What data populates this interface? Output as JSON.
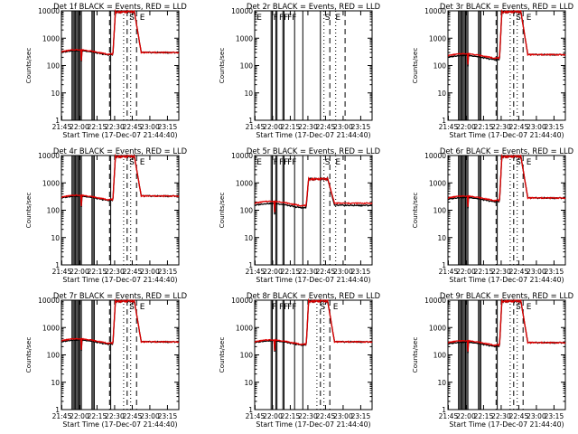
{
  "figure": {
    "colors": {
      "events": "#000000",
      "lld": "#e00000",
      "axis": "#000000"
    }
  },
  "chart_data": [
    {
      "type": "line",
      "title": "Det 1f  BLACK = Events, RED = LLD",
      "xlabel": "Start Time (17-Dec-07 21:44:40)",
      "ylabel": "Counts/sec",
      "yscale": "log",
      "ylim": [
        1,
        10000
      ],
      "xlim_minutes": [
        0,
        100
      ],
      "x_ticks": [
        "21:45",
        "22:00",
        "22:15",
        "22:30",
        "22:45",
        "23:00",
        "23:15"
      ],
      "y_ticks": [
        "1",
        "10",
        "100",
        "1000",
        "10000"
      ],
      "annotations": [
        "S",
        "E"
      ],
      "events_base": 300,
      "lld_base": 320,
      "events_high": 10000,
      "lld_high": 10000,
      "drop_at_100": 300,
      "solid_markers": [
        9,
        10,
        11,
        12,
        13,
        14,
        15,
        16,
        17,
        26,
        27,
        28,
        42
      ],
      "dashed_markers": [
        41,
        56,
        64
      ],
      "dotted_markers": [
        53,
        59
      ]
    },
    {
      "type": "line",
      "title": "Det 2r  BLACK = Events, RED = LLD",
      "xlabel": "Start Time (17-Dec-07 21:44:40)",
      "ylabel": "Counts/sec",
      "yscale": "log",
      "ylim": [
        1,
        10000
      ],
      "xlim_minutes": [
        0,
        100
      ],
      "x_ticks": [
        "21:45",
        "22:00",
        "22:15",
        "22:30",
        "22:45",
        "23:00",
        "23:15"
      ],
      "y_ticks": [
        "1",
        "10",
        "100",
        "1000",
        "10000"
      ],
      "annotations": [
        "E",
        "F",
        "FF",
        "FF",
        "S",
        "E"
      ],
      "events_base": null,
      "lld_base": null,
      "solid_markers": [
        0,
        14,
        15,
        18,
        19,
        24,
        25,
        34,
        41,
        56
      ],
      "dashed_markers": [
        64,
        77
      ],
      "dotted_markers": [
        59,
        69
      ]
    },
    {
      "type": "line",
      "title": "Det 3r  BLACK = Events, RED = LLD",
      "xlabel": "Start Time (17-Dec-07 21:44:40)",
      "ylabel": "Counts/sec",
      "yscale": "log",
      "ylim": [
        1,
        10000
      ],
      "xlim_minutes": [
        0,
        100
      ],
      "x_ticks": [
        "21:45",
        "22:00",
        "22:15",
        "22:30",
        "22:45",
        "23:00",
        "23:15"
      ],
      "y_ticks": [
        "1",
        "10",
        "100",
        "1000",
        "10000"
      ],
      "annotations": [
        "S",
        "E"
      ],
      "events_base": 200,
      "lld_base": 230,
      "events_high": 10000,
      "lld_high": 10000,
      "drop_at_100": 250,
      "solid_markers": [
        9,
        10,
        11,
        12,
        13,
        14,
        15,
        16,
        17,
        26,
        27,
        28,
        42
      ],
      "dashed_markers": [
        41,
        56,
        64
      ],
      "dotted_markers": [
        53,
        59
      ]
    },
    {
      "type": "line",
      "title": "Det 4r  BLACK = Events, RED = LLD",
      "xlabel": "Start Time (17-Dec-07 21:44:40)",
      "ylabel": "Counts/sec",
      "yscale": "log",
      "ylim": [
        1,
        10000
      ],
      "xlim_minutes": [
        0,
        100
      ],
      "x_ticks": [
        "21:45",
        "22:00",
        "22:15",
        "22:30",
        "22:45",
        "23:00",
        "23:15"
      ],
      "y_ticks": [
        "1",
        "10",
        "100",
        "1000",
        "10000"
      ],
      "annotations": [
        "S",
        "E"
      ],
      "events_base": 280,
      "lld_base": 300,
      "events_high": 10000,
      "lld_high": 10000,
      "drop_at_100": 330,
      "solid_markers": [
        9,
        10,
        11,
        12,
        13,
        14,
        15,
        16,
        17,
        26,
        27,
        28,
        42
      ],
      "dashed_markers": [
        41,
        56,
        64
      ],
      "dotted_markers": [
        53,
        59
      ]
    },
    {
      "type": "line",
      "title": "Det 5r  BLACK = Events, RED = LLD",
      "xlabel": "Start Time (17-Dec-07 21:44:40)",
      "ylabel": "Counts/sec",
      "yscale": "log",
      "ylim": [
        1,
        10000
      ],
      "xlim_minutes": [
        0,
        100
      ],
      "x_ticks": [
        "21:45",
        "22:00",
        "22:15",
        "22:30",
        "22:45",
        "23:00",
        "23:15"
      ],
      "y_ticks": [
        "1",
        "10",
        "100",
        "1000",
        "10000"
      ],
      "annotations": [
        "E",
        "F",
        "FF",
        "FF",
        "S",
        "E"
      ],
      "events_base": 150,
      "lld_base": 180,
      "events_high": 1500,
      "lld_high": 1500,
      "drop_at_100": null,
      "solid_markers": [
        0,
        14,
        15,
        18,
        19,
        24,
        25,
        34,
        41,
        56
      ],
      "dashed_markers": [
        64,
        77
      ],
      "dotted_markers": [
        59,
        69
      ]
    },
    {
      "type": "line",
      "title": "Det 6r  BLACK = Events, RED = LLD",
      "xlabel": "Start Time (17-Dec-07 21:44:40)",
      "ylabel": "Counts/sec",
      "yscale": "log",
      "ylim": [
        1,
        10000
      ],
      "xlim_minutes": [
        0,
        100
      ],
      "x_ticks": [
        "21:45",
        "22:00",
        "22:15",
        "22:30",
        "22:45",
        "23:00",
        "23:15"
      ],
      "y_ticks": [
        "1",
        "10",
        "100",
        "1000",
        "10000"
      ],
      "annotations": [
        "S",
        "E"
      ],
      "events_base": 250,
      "lld_base": 280,
      "events_high": 10000,
      "lld_high": 10000,
      "drop_at_100": 280,
      "solid_markers": [
        9,
        10,
        11,
        12,
        13,
        14,
        15,
        16,
        17,
        26,
        27,
        28,
        42
      ],
      "dashed_markers": [
        41,
        56,
        64
      ],
      "dotted_markers": [
        53,
        59
      ]
    },
    {
      "type": "line",
      "title": "Det 7r  BLACK = Events, RED = LLD",
      "xlabel": "Start Time (17-Dec-07 21:44:40)",
      "ylabel": "Counts/sec",
      "yscale": "log",
      "ylim": [
        1,
        10000
      ],
      "xlim_minutes": [
        0,
        100
      ],
      "x_ticks": [
        "21:45",
        "22:00",
        "22:15",
        "22:30",
        "22:45",
        "23:00",
        "23:15"
      ],
      "y_ticks": [
        "1",
        "10",
        "100",
        "1000",
        "10000"
      ],
      "annotations": [
        "S",
        "E"
      ],
      "events_base": 300,
      "lld_base": 330,
      "events_high": 10000,
      "lld_high": 10000,
      "drop_at_100": 300,
      "solid_markers": [
        9,
        10,
        11,
        12,
        13,
        14,
        15,
        16,
        17,
        26,
        27,
        28,
        42
      ],
      "dashed_markers": [
        41,
        56,
        64
      ],
      "dotted_markers": [
        53,
        59
      ]
    },
    {
      "type": "line",
      "title": "Det 8r  BLACK = Events, RED = LLD",
      "xlabel": "Start Time (17-Dec-07 21:44:40)",
      "ylabel": "Counts/sec",
      "yscale": "log",
      "ylim": [
        1,
        10000
      ],
      "xlim_minutes": [
        0,
        100
      ],
      "x_ticks": [
        "21:45",
        "22:00",
        "22:15",
        "22:30",
        "22:45",
        "23:00",
        "23:15"
      ],
      "y_ticks": [
        "1",
        "10",
        "100",
        "1000",
        "10000"
      ],
      "annotations": [
        "F",
        "FF",
        "FF",
        "S",
        "E"
      ],
      "events_base": 280,
      "lld_base": 300,
      "events_high": 10000,
      "lld_high": 10000,
      "drop_at_100": 300,
      "solid_markers": [
        14,
        15,
        18,
        19,
        24,
        25,
        34,
        41
      ],
      "dashed_markers": [
        56,
        64
      ],
      "dotted_markers": [
        53,
        59
      ]
    },
    {
      "type": "line",
      "title": "Det 9r  BLACK = Events, RED = LLD",
      "xlabel": "Start Time (17-Dec-07 21:44:40)",
      "ylabel": "Counts/sec",
      "yscale": "log",
      "ylim": [
        1,
        10000
      ],
      "xlim_minutes": [
        0,
        100
      ],
      "x_ticks": [
        "21:45",
        "22:00",
        "22:15",
        "22:30",
        "22:45",
        "23:00",
        "23:15"
      ],
      "y_ticks": [
        "1",
        "10",
        "100",
        "1000",
        "10000"
      ],
      "annotations": [
        "S",
        "E"
      ],
      "events_base": 250,
      "lld_base": 280,
      "events_high": 10000,
      "lld_high": 10000,
      "drop_at_100": 280,
      "solid_markers": [
        9,
        10,
        11,
        12,
        13,
        14,
        15,
        16,
        17,
        26,
        27,
        28,
        42
      ],
      "dashed_markers": [
        41,
        56,
        64
      ],
      "dotted_markers": [
        53,
        59
      ]
    }
  ]
}
